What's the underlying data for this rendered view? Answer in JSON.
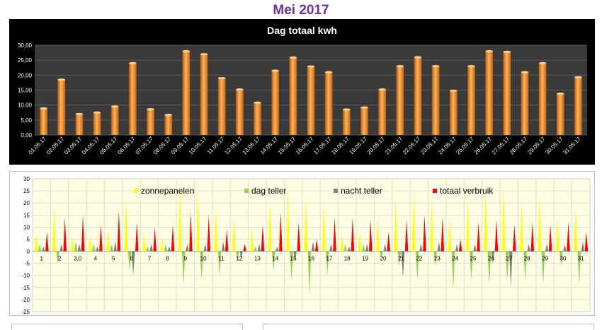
{
  "page": {
    "title": "Mei 2017"
  },
  "chart_data": [
    {
      "type": "bar",
      "title": "Dag totaal kwh",
      "xlabel": "",
      "ylabel": "",
      "ylim": [
        0,
        30
      ],
      "yticks": [
        "0,00",
        "5,00",
        "10,00",
        "15,00",
        "20,00",
        "25,00",
        "30,00"
      ],
      "categories": [
        "01.05.17",
        "02.05.17",
        "03.05.17",
        "04.05.17",
        "05.05.17",
        "06.05.17",
        "07.05.17",
        "08.05.17",
        "09.05.17",
        "10.05.17",
        "11.05.17",
        "12.05.17",
        "13.05.17",
        "14.05.17",
        "15.05.17",
        "16.05.17",
        "17.05.17",
        "18.05.17",
        "19.05.17",
        "20.05.17",
        "21.05.17",
        "22.05.17",
        "23.05.17",
        "24.05.17",
        "25.05.17",
        "26.05.17",
        "27.05.17",
        "28.05.17",
        "29.05.17",
        "30.05.17",
        "31.05.17"
      ],
      "values": [
        8.9,
        18.5,
        7.0,
        7.5,
        9.5,
        24.0,
        8.6,
        6.7,
        28.0,
        27.0,
        19.0,
        15.2,
        10.8,
        21.5,
        25.9,
        22.9,
        21.0,
        8.5,
        9.2,
        15.2,
        23.0,
        26.0,
        23.0,
        14.8,
        23.0,
        28.0,
        27.8,
        21.0,
        24.0,
        13.8,
        19.3
      ],
      "colors": {
        "background": "#000000",
        "plot": "#3a3a3a",
        "bar": "#f0902a",
        "title": "#ffffff",
        "text": "#ffffff",
        "grid": "#5a5a5a"
      },
      "grid": true
    },
    {
      "type": "bar",
      "title": "",
      "xlabel": "",
      "ylabel": "",
      "ylim": [
        -25,
        30
      ],
      "yticks": [
        "-25",
        "-20",
        "-15",
        "-10",
        "-5",
        "0",
        "5",
        "10",
        "15",
        "20",
        "25",
        "30"
      ],
      "categories": [
        "1",
        "2",
        "3,0",
        "4",
        "5",
        "6",
        "7",
        "8",
        "9",
        "10",
        "11",
        "12",
        "13",
        "14",
        "15",
        "16",
        "17",
        "18",
        "19",
        "20",
        "21",
        "22",
        "23",
        "24",
        "25",
        "26",
        "27",
        "28",
        "29",
        "30",
        "31"
      ],
      "legend_position": "top",
      "series": [
        {
          "name": "zonnepanelen",
          "color": "#ffff00",
          "values": [
            7.5,
            18,
            6,
            6.5,
            8.5,
            22,
            7.5,
            5.5,
            27,
            26,
            18,
            13.5,
            9.5,
            21,
            25,
            22,
            20,
            7.5,
            8,
            13.5,
            21,
            25,
            22,
            13.5,
            22,
            27,
            27,
            20,
            23,
            13,
            18
          ]
        },
        {
          "name": "dag teller",
          "color": "#92d050",
          "values": [
            3,
            -5,
            4,
            3,
            3,
            -8,
            2,
            3,
            -14,
            -12,
            -10,
            -4,
            2,
            -8,
            -12,
            -18,
            -10,
            3,
            3,
            -3,
            -6,
            -12,
            -6,
            -16,
            -12,
            -14,
            -12,
            -12,
            -14,
            -6,
            -14
          ]
        },
        {
          "name": "nacht teller",
          "color": "#808080",
          "values": [
            2,
            3,
            3,
            2,
            4,
            -10,
            3,
            2,
            3,
            3,
            4,
            -3,
            3,
            2,
            -4,
            4,
            3,
            2,
            3,
            3,
            -11,
            3,
            4,
            3,
            3,
            -5,
            -15,
            3,
            3,
            3,
            4
          ]
        },
        {
          "name": "totaal verbruik",
          "color": "#ff0000",
          "values": [
            8,
            14,
            15,
            11,
            17,
            12,
            10,
            11,
            16,
            15,
            9,
            3,
            11,
            16,
            12,
            5,
            14,
            14,
            13,
            8,
            13,
            15,
            14,
            5,
            12,
            13,
            11,
            12,
            11,
            12,
            8
          ]
        }
      ],
      "colors": {
        "background": "#ffffff",
        "plot": "#fdfde4",
        "grid": "#d9d9c0",
        "text": "#000000"
      },
      "grid": true
    }
  ]
}
